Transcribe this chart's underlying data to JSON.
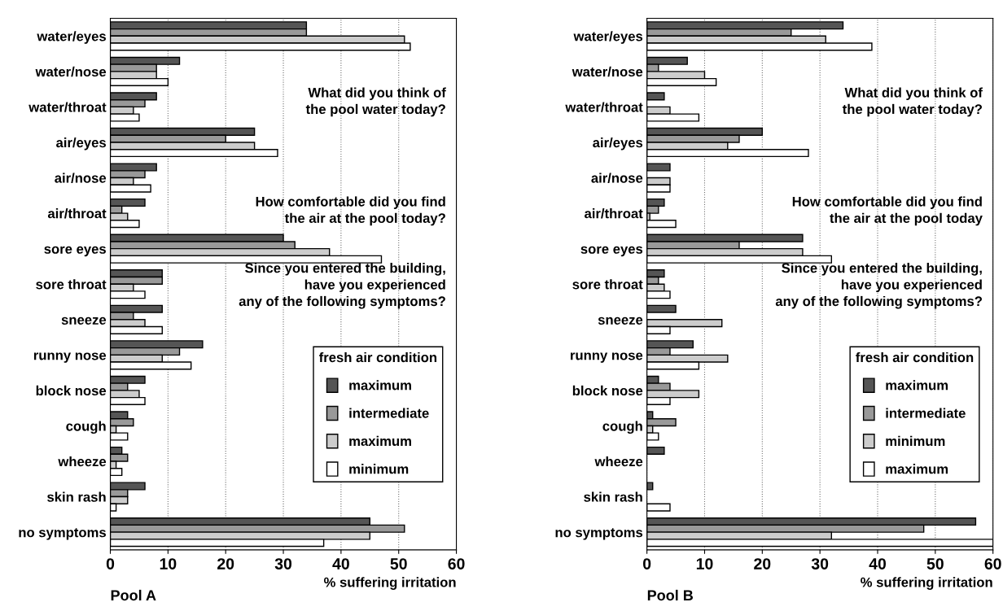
{
  "chart_data": [
    {
      "type": "bar",
      "orientation": "horizontal",
      "xlabel": "% suffering irritation",
      "legend_title": "fresh air condition",
      "legend": "right",
      "grid": "x",
      "annotations": [
        "What did you think of\nthe pool water today?",
        "How comfortable did you find\nthe air at the pool today?",
        "Since you entered the building,\nhave you experienced\nany of the following symptoms?",
        "Pool A"
      ],
      "categories": [
        "water/eyes",
        "water/nose",
        "water/throat",
        "air/eyes",
        "air/nose",
        "air/throat",
        "sore eyes",
        "sore throat",
        "sneeze",
        "runny nose",
        "block nose",
        "cough",
        "wheeze",
        "skin rash",
        "no symptoms"
      ],
      "xlim": [
        0,
        60
      ],
      "xticks": [
        0,
        10,
        20,
        30,
        40,
        50,
        60
      ],
      "series": [
        {
          "name": "maximum",
          "color": "#555555",
          "values": [
            34,
            12,
            8,
            25,
            8,
            6,
            30,
            9,
            9,
            16,
            6,
            3,
            2,
            6,
            45
          ]
        },
        {
          "name": "intermediate",
          "color": "#999999",
          "values": [
            34,
            8,
            6,
            20,
            6,
            2,
            32,
            9,
            4,
            12,
            3,
            4,
            3,
            3,
            51
          ]
        },
        {
          "name": "maximum",
          "color": "#cccccc",
          "values": [
            51,
            8,
            4,
            25,
            4,
            3,
            38,
            4,
            6,
            9,
            5,
            1,
            1,
            3,
            45
          ]
        },
        {
          "name": "minimum",
          "color": "#ffffff",
          "values": [
            52,
            10,
            5,
            29,
            7,
            5,
            47,
            6,
            9,
            14,
            6,
            3,
            2,
            1,
            37
          ]
        }
      ]
    },
    {
      "type": "bar",
      "orientation": "horizontal",
      "xlabel": "% suffering irritation",
      "legend_title": "fresh air condition",
      "legend": "right",
      "grid": "x",
      "annotations": [
        "What did you think of\nthe pool water today?",
        "How comfortable did you find\nthe air at the pool today",
        "Since you entered the building,\nhave you experienced\nany of the following symptoms?",
        "Pool B"
      ],
      "categories": [
        "water/eyes",
        "water/nose",
        "water/throat",
        "air/eyes",
        "air/nose",
        "air/throat",
        "sore eyes",
        "sore throat",
        "sneeze",
        "runny nose",
        "block nose",
        "cough",
        "wheeze",
        "skin rash",
        "no symptoms"
      ],
      "xlim": [
        0,
        60
      ],
      "xticks": [
        0,
        10,
        20,
        30,
        40,
        50,
        60
      ],
      "series": [
        {
          "name": "maximum",
          "color": "#555555",
          "values": [
            34,
            7,
            3,
            20,
            4,
            3,
            27,
            3,
            5,
            8,
            2,
            1,
            3,
            1,
            57
          ]
        },
        {
          "name": "intermediate",
          "color": "#999999",
          "values": [
            25,
            2,
            0,
            16,
            0,
            2,
            16,
            2,
            0,
            4,
            4,
            5,
            0,
            0,
            48
          ]
        },
        {
          "name": "minimum",
          "color": "#cccccc",
          "values": [
            31,
            10,
            4,
            14,
            4,
            0.5,
            27,
            3,
            13,
            14,
            9,
            1,
            0,
            0,
            32
          ]
        },
        {
          "name": "maximum",
          "color": "#ffffff",
          "values": [
            39,
            12,
            9,
            28,
            4,
            5,
            32,
            4,
            4,
            9,
            4,
            2,
            0,
            4,
            60
          ]
        }
      ]
    }
  ]
}
